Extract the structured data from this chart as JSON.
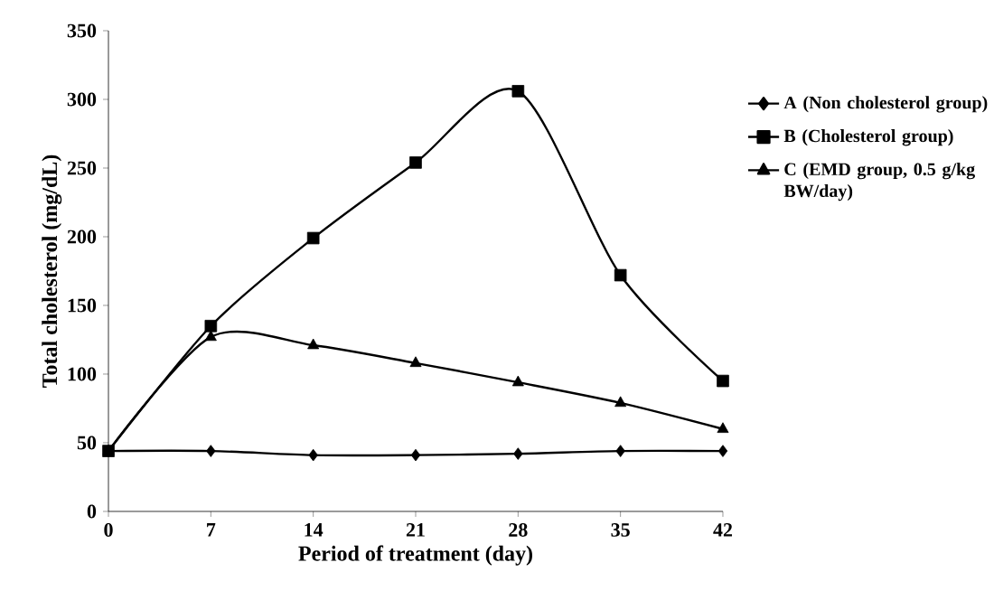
{
  "chart_data": {
    "type": "line",
    "xlabel": "Period of treatment (day)",
    "ylabel": "Total cholesterol (mg/dL)",
    "x": [
      0,
      7,
      14,
      21,
      28,
      35,
      42
    ],
    "xlim": [
      0,
      42
    ],
    "xticks": [
      0,
      7,
      14,
      21,
      28,
      35,
      42
    ],
    "ylim": [
      0,
      350
    ],
    "yticks": [
      0,
      50,
      100,
      150,
      200,
      250,
      300,
      350
    ],
    "legend": "right",
    "grid": false,
    "line_style": "solid",
    "series": [
      {
        "name": "A (Non cholesterol group)",
        "color": "#000000",
        "marker": "diamond",
        "values": [
          44,
          44,
          41,
          41,
          42,
          44,
          44
        ]
      },
      {
        "name": "B (Cholesterol group)",
        "color": "#000000",
        "marker": "square",
        "values": [
          44,
          135,
          199,
          254,
          306,
          172,
          95
        ]
      },
      {
        "name": "C (EMD group, 0.5 g/kg BW/day)",
        "color": "#000000",
        "marker": "triangle",
        "values": [
          44,
          127,
          121,
          108,
          94,
          79,
          60
        ]
      }
    ]
  }
}
